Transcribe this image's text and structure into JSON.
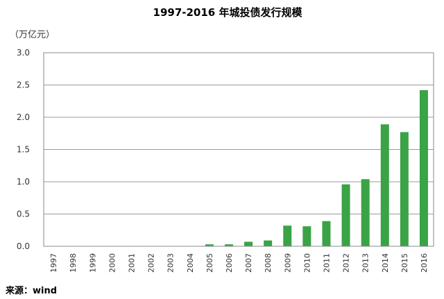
{
  "chart_data": {
    "type": "bar",
    "title": "1997-2016 年城投债发行规模",
    "unit_label": "（万亿元）",
    "source": "来源：wind",
    "categories": [
      "1997",
      "1998",
      "1999",
      "2000",
      "2001",
      "2002",
      "2003",
      "2004",
      "2005",
      "2006",
      "2007",
      "2008",
      "2009",
      "2010",
      "2011",
      "2012",
      "2013",
      "2014",
      "2015",
      "2016"
    ],
    "values": [
      0,
      0,
      0,
      0,
      0,
      0,
      0,
      0,
      0.03,
      0.03,
      0.07,
      0.09,
      0.32,
      0.31,
      0.39,
      0.96,
      1.04,
      1.89,
      1.77,
      2.42
    ],
    "ylim": [
      0,
      3.0
    ],
    "yticks": [
      "0.0",
      "0.5",
      "1.0",
      "1.5",
      "2.0",
      "2.5",
      "3.0"
    ],
    "grid": true,
    "bar_color": "#3aa346"
  }
}
